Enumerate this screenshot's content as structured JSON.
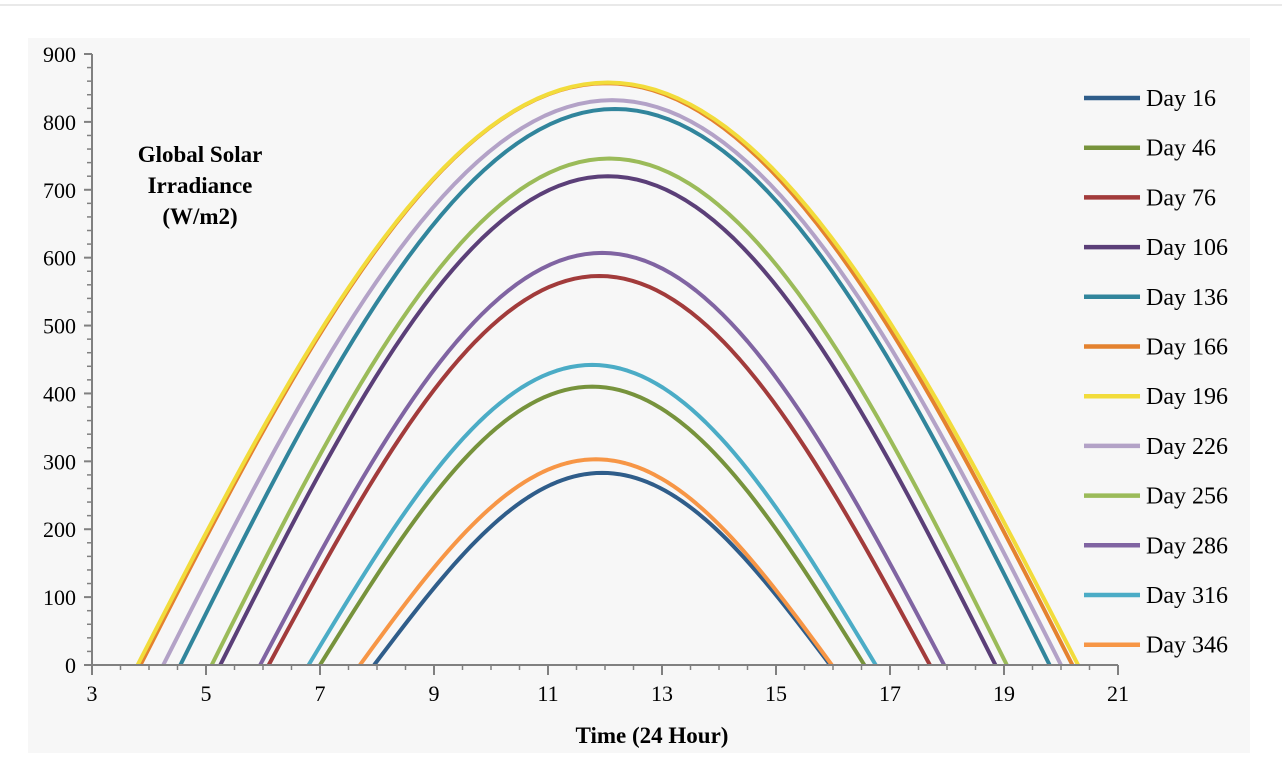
{
  "chart_data": {
    "type": "line",
    "title": "",
    "ylabel": "Global Solar Irradiance (W/m2)",
    "ylabel_lines": [
      "Global Solar",
      "Irradiance",
      "(W/m2)"
    ],
    "xlabel": "Time (24 Hour)",
    "xlim": [
      3,
      21
    ],
    "ylim": [
      0,
      900
    ],
    "x_ticks": [
      3,
      5,
      7,
      9,
      11,
      13,
      15,
      17,
      19,
      21
    ],
    "y_ticks": [
      0,
      100,
      200,
      300,
      400,
      500,
      600,
      700,
      800,
      900
    ],
    "grid": false,
    "legend_position": "right",
    "series": [
      {
        "name": "Day 16",
        "color": "#2f5d8a",
        "sunrise": 7.95,
        "sunset": 15.95,
        "peak": 283
      },
      {
        "name": "Day 46",
        "color": "#77933c",
        "sunrise": 7.0,
        "sunset": 16.55,
        "peak": 410
      },
      {
        "name": "Day 76",
        "color": "#a23b3b",
        "sunrise": 6.1,
        "sunset": 17.7,
        "peak": 573
      },
      {
        "name": "Day 106",
        "color": "#5b3f78",
        "sunrise": 5.25,
        "sunset": 18.85,
        "peak": 720
      },
      {
        "name": "Day 136",
        "color": "#31859c",
        "sunrise": 4.55,
        "sunset": 19.8,
        "peak": 819
      },
      {
        "name": "Day 166",
        "color": "#e4822f",
        "sunrise": 3.85,
        "sunset": 20.2,
        "peak": 857
      },
      {
        "name": "Day 196",
        "color": "#f2dc3b",
        "sunrise": 3.8,
        "sunset": 20.3,
        "peak": 858
      },
      {
        "name": "Day 226",
        "color": "#b3a2c7",
        "sunrise": 4.25,
        "sunset": 20.0,
        "peak": 832
      },
      {
        "name": "Day 256",
        "color": "#9bbb59",
        "sunrise": 5.1,
        "sunset": 19.05,
        "peak": 746
      },
      {
        "name": "Day 286",
        "color": "#8064a2",
        "sunrise": 5.95,
        "sunset": 17.95,
        "peak": 607
      },
      {
        "name": "Day 316",
        "color": "#4bacc6",
        "sunrise": 6.8,
        "sunset": 16.75,
        "peak": 442
      },
      {
        "name": "Day 346",
        "color": "#f79646",
        "sunrise": 7.7,
        "sunset": 15.98,
        "peak": 303
      }
    ]
  }
}
